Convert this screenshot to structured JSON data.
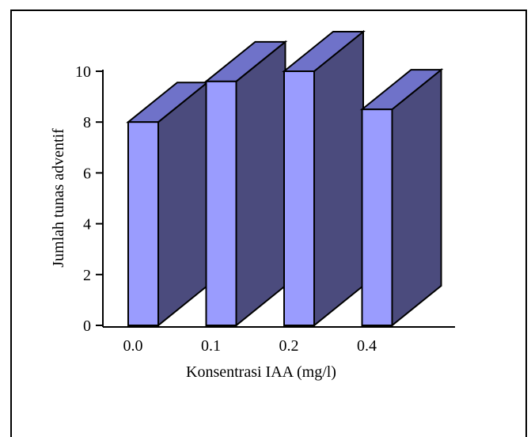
{
  "chart_data": {
    "type": "bar",
    "style": "3d",
    "title": "",
    "xlabel": "Konsentrasi IAA (mg/l)",
    "ylabel": "Jumlah tunas adventif",
    "categories": [
      "0.0",
      "0.1",
      "0.2",
      "0.4"
    ],
    "values": [
      8.0,
      9.6,
      10.0,
      8.5
    ],
    "ylim": [
      0,
      10
    ],
    "yticks": [
      "0",
      "2",
      "4",
      "6",
      "8",
      "10"
    ],
    "grid": false,
    "legend": "none",
    "colors": {
      "front": "#9a9cfe",
      "side": "#4b4b7d",
      "top": "#6f72c9",
      "edge": "#000000"
    }
  }
}
